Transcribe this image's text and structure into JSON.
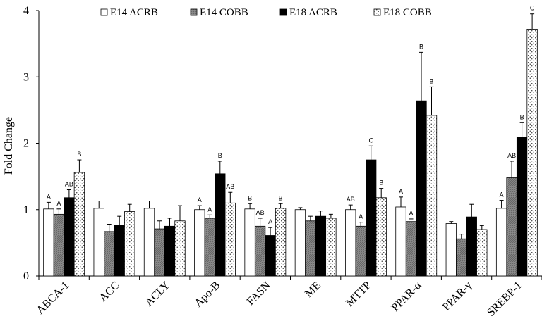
{
  "chart_data": {
    "type": "bar",
    "ylabel": "Fold Change",
    "xlabel": "",
    "ylim": [
      0,
      4
    ],
    "yticks": [
      "0",
      "1",
      "2",
      "3",
      "4"
    ],
    "legend_position": "top",
    "categories": [
      "ABCA-1",
      "ACC",
      "ACLY",
      "Apo-B",
      "FASN",
      "ME",
      "MTTP",
      "PPAR-α",
      "PPAR-γ",
      "SREBP-1"
    ],
    "series": [
      {
        "name": "E14 ACRB",
        "style": "white",
        "values": [
          1.01,
          1.02,
          1.02,
          1.0,
          1.01,
          1.0,
          1.0,
          1.04,
          0.79,
          1.02
        ],
        "errors": [
          0.1,
          0.11,
          0.11,
          0.06,
          0.08,
          0.03,
          0.07,
          0.15,
          0.03,
          0.12
        ],
        "labels": [
          "A",
          "",
          "",
          "A",
          "B",
          "",
          "AB",
          "A",
          "",
          "A"
        ]
      },
      {
        "name": "E14 COBB",
        "style": "gray-hatched",
        "values": [
          0.93,
          0.67,
          0.71,
          0.87,
          0.75,
          0.83,
          0.75,
          0.82,
          0.56,
          1.48
        ],
        "errors": [
          0.08,
          0.11,
          0.12,
          0.05,
          0.12,
          0.07,
          0.06,
          0.04,
          0.07,
          0.25
        ],
        "labels": [
          "A",
          "",
          "",
          "A",
          "AB",
          "",
          "A",
          "A",
          "",
          "AB"
        ]
      },
      {
        "name": "E18 ACRB",
        "style": "black",
        "values": [
          1.18,
          0.77,
          0.75,
          1.54,
          0.61,
          0.9,
          1.75,
          2.64,
          0.89,
          2.09
        ],
        "errors": [
          0.12,
          0.13,
          0.12,
          0.19,
          0.12,
          0.08,
          0.21,
          0.73,
          0.19,
          0.22
        ],
        "labels": [
          "AB",
          "",
          "",
          "B",
          "A",
          "",
          "C",
          "B",
          "",
          "B"
        ]
      },
      {
        "name": "E18 COBB",
        "style": "dotted",
        "values": [
          1.56,
          0.97,
          0.83,
          1.1,
          1.02,
          0.87,
          1.18,
          2.42,
          0.7,
          3.72
        ],
        "errors": [
          0.19,
          0.11,
          0.23,
          0.16,
          0.07,
          0.06,
          0.14,
          0.43,
          0.06,
          0.23
        ],
        "labels": [
          "B",
          "",
          "",
          "AB",
          "B",
          "",
          "B",
          "B",
          "",
          "C"
        ]
      }
    ]
  }
}
